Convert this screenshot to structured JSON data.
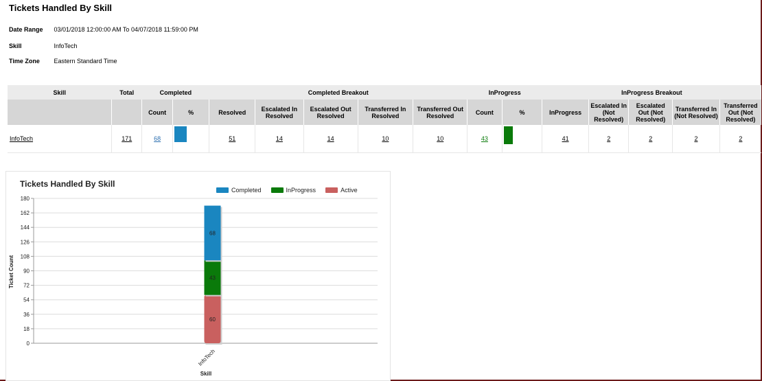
{
  "report": {
    "title": "Tickets Handled By Skill",
    "params": [
      {
        "label": "Date Range",
        "value": "03/01/2018 12:00:00 AM  To  04/07/2018 11:59:00 PM"
      },
      {
        "label": "Skill",
        "value": "InfoTech"
      },
      {
        "label": "Time Zone",
        "value": "Eastern Standard Time"
      }
    ]
  },
  "table": {
    "group_headers": [
      "Skill",
      "Total",
      "Completed",
      "Completed Breakout",
      "InProgress",
      "InProgress Breakout"
    ],
    "sub_headers": [
      "Count",
      "%",
      "Resolved",
      "Escalated In Resolved",
      "Escalated Out Resolved",
      "Transferred In Resolved",
      "Transferred Out Resolved",
      "Count",
      "%",
      "InProgress",
      "Escalated In (Not Resolved)",
      "Escalated Out (Not Resolved)",
      "Transferred In (Not Resolved)",
      "Transferred Out (Not Resolved)"
    ],
    "rows": [
      {
        "skill": "InfoTech",
        "total": "171",
        "completed_count": "68",
        "completed_pct": 0.4,
        "resolved": "51",
        "escalated_in_resolved": "14",
        "escalated_out_resolved": "14",
        "transferred_in_resolved": "10",
        "transferred_out_resolved": "10",
        "inprogress_count": "43",
        "inprogress_pct": 0.25,
        "inprogress": "41",
        "escalated_in_not_resolved": "2",
        "escalated_out_not_resolved": "2",
        "transferred_in_not_resolved": "2",
        "transferred_out_not_resolved": "2"
      }
    ]
  },
  "colors": {
    "completed": "#1a86c0",
    "inprogress": "#0a7a0a",
    "active": "#c9605f"
  },
  "chart_data": {
    "type": "bar",
    "stacked": true,
    "title": "Tickets Handled By Skill",
    "xlabel": "Skill",
    "ylabel": "Ticket Count",
    "categories": [
      "InfoTech"
    ],
    "series": [
      {
        "name": "Completed",
        "values": [
          68
        ],
        "color": "#1a86c0"
      },
      {
        "name": "InProgress",
        "values": [
          43
        ],
        "color": "#0a7a0a"
      },
      {
        "name": "Active",
        "values": [
          60
        ],
        "color": "#c9605f"
      }
    ],
    "ylim": [
      0,
      180
    ],
    "yticks": [
      0,
      18,
      36,
      54,
      72,
      90,
      108,
      126,
      144,
      162,
      180
    ],
    "legend_position": "top",
    "grid": true
  }
}
